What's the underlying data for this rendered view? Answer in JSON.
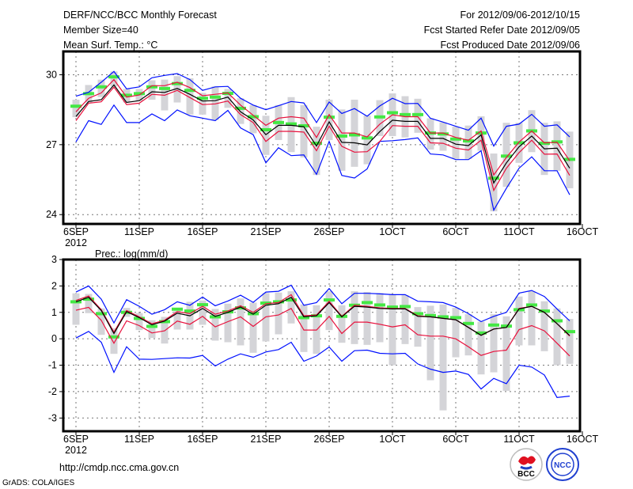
{
  "header": {
    "title": "DERF/NCC/BCC Monthly Forecast",
    "member_size": "Member Size=40",
    "variable": "Mean Surf. Temp.: °C",
    "period": "For 2012/09/06-2012/10/15",
    "started": "Fcst Started Refer Date 2012/09/05",
    "produced": "Fcst Produced Date 2012/09/06"
  },
  "footer": {
    "url": "http://cmdp.ncc.cma.gov.cn",
    "grads": "GrADS: COLA/IGES"
  },
  "logos": [
    {
      "name": "BCC",
      "text": "BCC"
    },
    {
      "name": "NCC",
      "text": "NCC"
    }
  ],
  "colors": {
    "mean": "#000000",
    "spread": "#e8103c",
    "extreme": "#0010ff",
    "observed": "#44e844",
    "range": "#d4d4d8",
    "grid": "#777777"
  },
  "chart_data": [
    {
      "type": "line",
      "title": "Mean Surf. Temp.: °C",
      "xlabel": "",
      "ylabel": "",
      "x_ticks": [
        "6SEP",
        "11SEP",
        "16SEP",
        "21SEP",
        "26SEP",
        "1OCT",
        "6OCT",
        "11OCT",
        "16OCT"
      ],
      "x_year": "2012",
      "y_ticks": [
        30,
        27,
        24
      ],
      "ylim": [
        23.6,
        31.0
      ],
      "days": 40,
      "grid": true,
      "series": [
        {
          "name": "ensemble-mean",
          "color": "#000000",
          "values": [
            28.21,
            28.85,
            28.93,
            29.56,
            28.81,
            28.89,
            29.27,
            29.24,
            29.41,
            29.16,
            28.87,
            28.89,
            29.04,
            28.41,
            28.06,
            27.43,
            27.83,
            27.83,
            27.77,
            26.94,
            27.98,
            27.1,
            27.08,
            26.99,
            27.56,
            28.05,
            28.0,
            28.0,
            27.27,
            27.27,
            27.02,
            26.96,
            27.42,
            25.36,
            26.22,
            26.91,
            27.37,
            26.82,
            26.85,
            25.99
          ]
        },
        {
          "name": "upper-spread",
          "color": "#e8103c",
          "values": [
            28.41,
            28.99,
            29.22,
            29.79,
            29.04,
            29.13,
            29.53,
            29.53,
            29.68,
            29.45,
            29.1,
            29.16,
            29.22,
            28.7,
            28.26,
            27.83,
            28.14,
            28.2,
            28.14,
            27.31,
            28.29,
            27.5,
            27.5,
            27.33,
            27.88,
            28.28,
            28.2,
            28.2,
            27.5,
            27.5,
            27.31,
            27.19,
            27.59,
            25.7,
            26.45,
            27.11,
            27.59,
            27.08,
            27.1,
            26.31
          ]
        },
        {
          "name": "lower-spread",
          "color": "#e8103c",
          "values": [
            28.03,
            28.78,
            28.84,
            29.47,
            28.72,
            28.78,
            29.16,
            29.12,
            29.33,
            29.02,
            28.72,
            28.75,
            28.87,
            28.29,
            27.95,
            27.14,
            27.57,
            27.57,
            27.54,
            26.74,
            27.8,
            26.93,
            26.68,
            26.7,
            27.14,
            27.82,
            27.79,
            27.79,
            27.08,
            27.06,
            26.85,
            26.77,
            27.19,
            25.04,
            25.99,
            26.66,
            27.19,
            26.59,
            26.6,
            25.68
          ]
        },
        {
          "name": "member-max",
          "color": "#0010ff",
          "values": [
            29.08,
            29.25,
            29.68,
            30.14,
            29.39,
            29.48,
            29.87,
            29.97,
            30.05,
            29.79,
            29.33,
            29.48,
            29.5,
            28.99,
            28.7,
            28.5,
            28.67,
            28.85,
            28.79,
            27.95,
            28.83,
            28.34,
            28.55,
            28.22,
            28.66,
            28.99,
            28.76,
            28.77,
            28.13,
            27.97,
            27.79,
            27.62,
            28.14,
            26.94,
            27.79,
            27.88,
            28.3,
            27.79,
            27.85,
            27.33
          ]
        },
        {
          "name": "member-min",
          "color": "#0010ff",
          "values": [
            27.12,
            28.03,
            27.87,
            28.7,
            27.95,
            27.95,
            28.32,
            28.03,
            28.49,
            28.24,
            28.14,
            28.03,
            28.47,
            27.72,
            27.43,
            26.22,
            26.87,
            26.53,
            26.56,
            25.73,
            27.14,
            25.68,
            25.57,
            25.96,
            27.14,
            27.17,
            27.22,
            27.29,
            26.6,
            26.56,
            26.36,
            26.36,
            26.74,
            24.19,
            25.13,
            25.99,
            26.48,
            25.88,
            25.88,
            24.85
          ]
        }
      ],
      "markers": {
        "name": "green-marker",
        "values": [
          28.65,
          29.19,
          29.48,
          29.91,
          29.12,
          29.19,
          29.48,
          29.41,
          29.62,
          29.33,
          28.99,
          29.04,
          29.2,
          28.56,
          28.2,
          27.64,
          27.95,
          27.89,
          27.81,
          27.06,
          28.18,
          27.37,
          27.42,
          27.29,
          28.19,
          28.37,
          28.29,
          28.29,
          27.5,
          27.46,
          27.24,
          27.16,
          27.5,
          25.56,
          26.51,
          27.08,
          27.59,
          27.06,
          27.12,
          26.37
        ]
      },
      "ranges": {
        "high": [
          28.93,
          29.56,
          29.79,
          30.14,
          29.39,
          29.39,
          29.76,
          29.79,
          29.94,
          29.85,
          29.22,
          29.5,
          29.39,
          28.99,
          28.7,
          28.24,
          28.7,
          29.04,
          28.7,
          27.77,
          28.93,
          28.51,
          28.93,
          28.25,
          28.91,
          29.2,
          29.08,
          28.97,
          28.13,
          27.96,
          27.77,
          27.82,
          28.22,
          26.62,
          27.94,
          27.94,
          28.48,
          27.94,
          28.0,
          27.56
        ],
        "low": [
          28.18,
          28.81,
          29.04,
          29.5,
          28.81,
          28.87,
          28.93,
          28.47,
          28.81,
          28.29,
          28.29,
          28.06,
          28.58,
          27.89,
          27.49,
          26.56,
          27.2,
          26.68,
          26.45,
          25.7,
          27.2,
          25.88,
          26.05,
          26.16,
          27.37,
          27.37,
          27.31,
          27.51,
          26.79,
          26.74,
          26.39,
          26.39,
          26.74,
          24.14,
          25.19,
          26.22,
          26.68,
          25.7,
          25.88,
          25.13
        ]
      }
    },
    {
      "type": "line",
      "title": "Prec.: log(mm/d)",
      "xlabel": "",
      "ylabel": "",
      "x_ticks": [
        "6SEP",
        "11SEP",
        "16SEP",
        "21SEP",
        "26SEP",
        "1OCT",
        "6OCT",
        "11OCT",
        "16OCT"
      ],
      "x_year": "2012",
      "y_ticks": [
        3,
        2,
        1,
        0,
        -1,
        -2,
        -3
      ],
      "ylim": [
        -3.5,
        3.0
      ],
      "days": 40,
      "grid": true,
      "series": [
        {
          "name": "ensemble-mean",
          "color": "#000000",
          "values": [
            1.4,
            1.57,
            1.07,
            0.2,
            1.03,
            0.8,
            0.53,
            0.67,
            0.97,
            0.87,
            1.15,
            0.85,
            1.0,
            1.2,
            0.93,
            1.27,
            1.33,
            1.57,
            0.83,
            0.87,
            1.37,
            0.83,
            1.23,
            1.2,
            1.15,
            1.13,
            1.13,
            0.85,
            0.83,
            0.77,
            0.72,
            0.43,
            0.13,
            0.37,
            0.43,
            1.13,
            1.23,
            1.0,
            0.57,
            0.12
          ]
        },
        {
          "name": "upper-spread",
          "color": "#e8103c",
          "values": [
            1.45,
            1.62,
            1.1,
            0.25,
            1.07,
            0.83,
            0.57,
            0.7,
            1.03,
            0.95,
            1.23,
            0.93,
            1.05,
            1.25,
            1.0,
            1.33,
            1.37,
            1.67,
            0.87,
            0.9,
            1.42,
            0.85,
            1.27,
            1.23,
            1.17,
            1.15,
            1.15,
            0.87,
            0.83,
            0.77,
            0.72,
            0.43,
            0.13,
            0.37,
            0.43,
            1.15,
            1.23,
            1.0,
            0.57,
            0.1
          ]
        },
        {
          "name": "lower-spread",
          "color": "#e8103c",
          "values": [
            1.08,
            1.19,
            0.7,
            -0.17,
            0.68,
            0.5,
            0.22,
            0.3,
            0.67,
            0.55,
            0.85,
            0.45,
            0.65,
            0.83,
            0.47,
            0.83,
            0.9,
            1.15,
            0.33,
            0.33,
            0.85,
            0.2,
            0.63,
            0.63,
            0.55,
            0.45,
            0.53,
            0.15,
            0.1,
            0.1,
            0.0,
            -0.3,
            -0.63,
            -0.48,
            -0.43,
            0.35,
            0.5,
            0.3,
            -0.17,
            -0.65
          ]
        },
        {
          "name": "member-max",
          "color": "#0010ff",
          "values": [
            1.77,
            2.0,
            1.5,
            0.6,
            1.48,
            1.23,
            0.93,
            1.1,
            1.4,
            1.27,
            1.58,
            1.25,
            1.43,
            1.65,
            1.38,
            1.77,
            1.8,
            2.03,
            1.27,
            1.37,
            1.9,
            1.33,
            1.72,
            1.72,
            1.7,
            1.67,
            1.67,
            1.42,
            1.4,
            1.37,
            1.2,
            0.95,
            0.65,
            0.85,
            1.0,
            1.73,
            1.83,
            1.6,
            1.13,
            0.68
          ]
        },
        {
          "name": "member-min",
          "color": "#0010ff",
          "values": [
            0.03,
            0.28,
            -0.13,
            -1.27,
            -0.3,
            -0.77,
            -0.78,
            -0.75,
            -0.72,
            -0.73,
            -0.63,
            -1.03,
            -0.77,
            -0.57,
            -0.7,
            -0.5,
            -0.41,
            -0.13,
            -0.85,
            -0.65,
            -0.31,
            -0.85,
            -0.45,
            -0.43,
            -0.55,
            -0.57,
            -0.55,
            -0.95,
            -1.15,
            -1.27,
            -1.22,
            -1.35,
            -1.9,
            -1.5,
            -1.7,
            -1.0,
            -1.07,
            -1.37,
            -2.22,
            -2.17
          ]
        }
      ],
      "markers": {
        "name": "green-marker",
        "values": [
          1.4,
          1.5,
          0.95,
          0.07,
          1.0,
          0.77,
          0.47,
          0.65,
          1.12,
          1.05,
          1.29,
          0.83,
          1.02,
          1.17,
          0.95,
          1.35,
          1.4,
          1.47,
          0.8,
          0.87,
          1.47,
          0.85,
          1.27,
          1.37,
          1.28,
          1.2,
          1.22,
          0.95,
          0.88,
          0.83,
          0.8,
          0.58,
          0.22,
          0.52,
          0.48,
          1.1,
          1.28,
          1.05,
          0.68,
          0.27
        ]
      },
      "ranges": {
        "high": [
          1.72,
          1.7,
          1.15,
          0.4,
          1.17,
          0.97,
          0.7,
          0.83,
          1.05,
          1.4,
          1.45,
          1.13,
          1.33,
          1.53,
          1.37,
          1.73,
          1.75,
          1.8,
          1.3,
          1.27,
          1.8,
          1.27,
          1.8,
          1.77,
          1.73,
          1.67,
          1.65,
          1.2,
          1.25,
          1.3,
          1.17,
          0.93,
          0.65,
          0.93,
          0.85,
          1.6,
          1.8,
          1.42,
          1.15,
          0.75
        ],
        "low": [
          0.53,
          0.97,
          0.15,
          -0.57,
          0.83,
          0.33,
          0.03,
          -0.18,
          0.35,
          0.35,
          0.53,
          -0.07,
          -0.13,
          -0.25,
          -0.53,
          -0.1,
          0.17,
          0.58,
          -0.5,
          -0.57,
          0.33,
          -0.15,
          -0.2,
          -0.23,
          -0.13,
          -1.0,
          -0.2,
          -0.3,
          -1.57,
          -2.71,
          -0.7,
          -0.63,
          -1.35,
          -1.27,
          -1.97,
          -0.25,
          -0.25,
          -0.47,
          -1.0,
          -0.95
        ]
      }
    }
  ]
}
